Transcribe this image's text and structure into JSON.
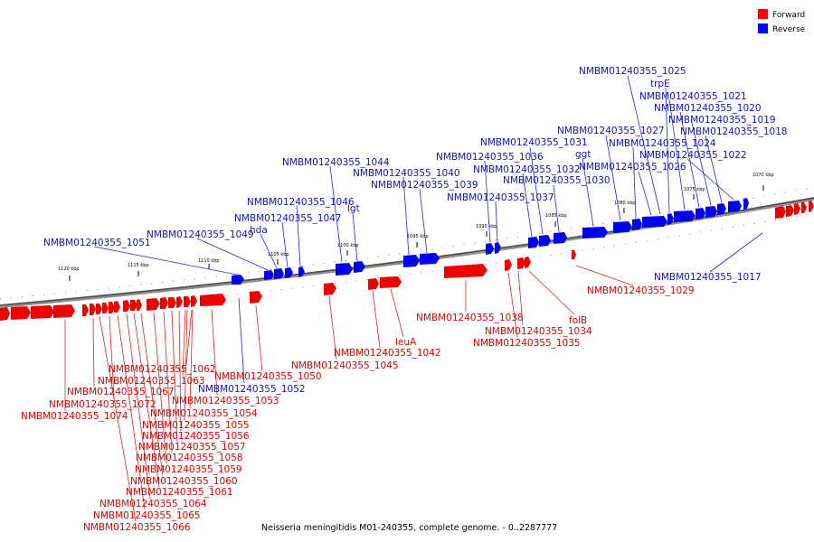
{
  "legend": {
    "forward_label": "Forward",
    "reverse_label": "Reverse",
    "forward_color": "#ff0000",
    "reverse_color": "#0000ff"
  },
  "caption": "Neisseria meningitidis M01-240355, complete genome. - 0..2287777",
  "ticks": [
    "1120 kbp",
    "1115 kbp",
    "1110 kbp",
    "1105 kbp",
    "1100 kbp",
    "1095 kbp",
    "1090 kbp",
    "1085 kbp",
    "1080 kbp",
    "1075 kbp",
    "1070 kbp"
  ],
  "genes": {
    "reverse": [
      "NMBM01240355_1025",
      "trpE",
      "NMBM01240355_1021",
      "NMBM01240355_1020",
      "NMBM01240355_1019",
      "NMBM01240355_1018",
      "NMBM01240355_1027",
      "NMBM01240355_1024",
      "NMBM01240355_1031",
      "ggt",
      "NMBM01240355_1022",
      "NMBM01240355_1036",
      "NMBM01240355_1026",
      "NMBM01240355_1032",
      "NMBM01240355_1030",
      "NMBM01240355_1044",
      "NMBM01240355_1040",
      "NMBM01240355_1039",
      "NMBM01240355_1037",
      "NMBM01240355_1046",
      "lgt",
      "NMBM01240355_1047",
      "hda",
      "NMBM01240355_1049",
      "NMBM01240355_1051",
      "NMBM01240355_1017",
      "NMBM01240355_1052"
    ],
    "forward": [
      "NMBM01240355_1029",
      "folB",
      "NMBM01240355_1038",
      "NMBM01240355_1034",
      "NMBM01240355_1035",
      "leuA",
      "NMBM01240355_1042",
      "NMBM01240355_1045",
      "NMBM01240355_1050",
      "NMBM01240355_1062",
      "NMBM01240355_1063",
      "NMBM01240355_1067",
      "NMBM01240355_1053",
      "NMBM01240355_1072",
      "NMBM01240355_1054",
      "NMBM01240355_1074",
      "NMBM01240355_1055",
      "NMBM01240355_1056",
      "NMBM01240355_1057",
      "NMBM01240355_1058",
      "NMBM01240355_1059",
      "NMBM01240355_1060",
      "NMBM01240355_1061",
      "NMBM01240355_1064",
      "NMBM01240355_1065",
      "NMBM01240355_1066"
    ]
  }
}
